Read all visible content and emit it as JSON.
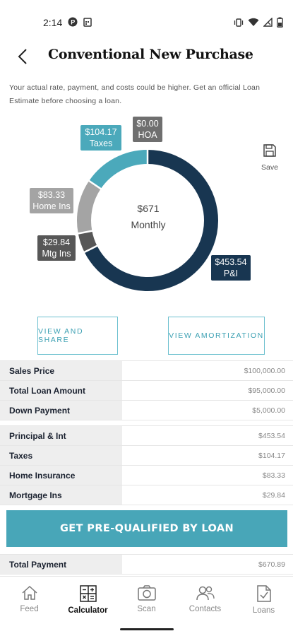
{
  "status_bar": {
    "time": "2:14",
    "icons_left": [
      "p-app-icon",
      "calendar-icon"
    ],
    "icons_right": [
      "vibrate-icon",
      "wifi-icon",
      "signal-icon",
      "battery-icon"
    ]
  },
  "header": {
    "title": "Conventional New Purchase",
    "back_icon": "chevron-left-icon"
  },
  "disclaimer": "Your actual rate, payment, and costs could be higher. Get an official Loan Estimate before choosing a loan.",
  "chart_data": {
    "type": "pie",
    "subtype": "donut",
    "center_value": "$671",
    "center_label": "Monthly",
    "slices": [
      {
        "name": "P&I",
        "label": "$453.54",
        "value": 453.54,
        "color": "#183651"
      },
      {
        "name": "Mtg Ins",
        "label": "$29.84",
        "value": 29.84,
        "color": "#575757"
      },
      {
        "name": "Home Ins",
        "label": "$83.33",
        "value": 83.33,
        "color": "#a4a4a4"
      },
      {
        "name": "Taxes",
        "label": "$104.17",
        "value": 104.17,
        "color": "#4ba9bb"
      },
      {
        "name": "HOA",
        "label": "$0.00",
        "value": 0,
        "color": "#6f6f6f"
      }
    ]
  },
  "save": {
    "label": "Save",
    "icon": "floppy-disk-icon"
  },
  "buttons": {
    "view_share": "VIEW AND SHARE",
    "view_amortization": "VIEW AMORTIZATION",
    "cta": "GET PRE-QUALIFIED BY LOAN"
  },
  "loan_table": [
    {
      "label": "Sales Price",
      "value": "$100,000.00"
    },
    {
      "label": "Total Loan Amount",
      "value": "$95,000.00"
    },
    {
      "label": "Down Payment",
      "value": "$5,000.00"
    }
  ],
  "payment_table": [
    {
      "label": "Principal & Int",
      "value": "$453.54"
    },
    {
      "label": "Taxes",
      "value": "$104.17"
    },
    {
      "label": "Home Insurance",
      "value": "$83.33"
    },
    {
      "label": "Mortgage Ins",
      "value": "$29.84"
    }
  ],
  "total_table": [
    {
      "label": "Total Payment",
      "value": "$670.89"
    }
  ],
  "nav": [
    {
      "label": "Feed",
      "icon": "home-icon",
      "active": false
    },
    {
      "label": "Calculator",
      "icon": "calculator-icon",
      "active": true
    },
    {
      "label": "Scan",
      "icon": "camera-icon",
      "active": false
    },
    {
      "label": "Contacts",
      "icon": "contacts-icon",
      "active": false
    },
    {
      "label": "Loans",
      "icon": "document-check-icon",
      "active": false
    }
  ],
  "colors": {
    "accent": "#48a6b8",
    "navy": "#183651"
  }
}
